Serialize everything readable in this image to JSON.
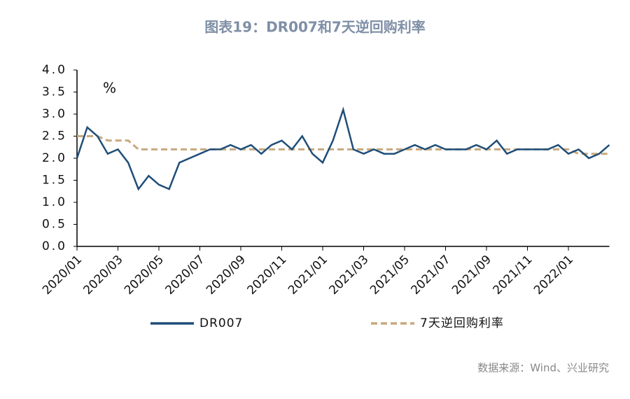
{
  "chart_data": {
    "type": "line",
    "title": "图表19：DR007和7天逆回购利率",
    "y_label": "%",
    "source": "数据来源：Wind、兴业研究",
    "categories": [
      "2020/01",
      null,
      null,
      null,
      "2020/03",
      null,
      null,
      null,
      "2020/05",
      null,
      null,
      null,
      "2020/07",
      null,
      null,
      null,
      "2020/09",
      null,
      null,
      null,
      "2020/11",
      null,
      null,
      null,
      "2021/01",
      null,
      null,
      null,
      "2021/03",
      null,
      null,
      null,
      "2021/05",
      null,
      null,
      null,
      "2021/07",
      null,
      null,
      null,
      "2021/09",
      null,
      null,
      null,
      "2021/11",
      null,
      null,
      null,
      "2022/01",
      null,
      null,
      null,
      null
    ],
    "series": [
      {
        "name": "DR007",
        "color": "#1f4e79",
        "dash": false,
        "values": [
          2.0,
          2.7,
          2.5,
          2.1,
          2.2,
          1.9,
          1.3,
          1.6,
          1.4,
          1.3,
          1.9,
          2.0,
          2.1,
          2.2,
          2.2,
          2.3,
          2.2,
          2.3,
          2.1,
          2.3,
          2.4,
          2.2,
          2.5,
          2.1,
          1.9,
          2.4,
          3.1,
          2.2,
          2.1,
          2.2,
          2.1,
          2.1,
          2.2,
          2.3,
          2.2,
          2.3,
          2.2,
          2.2,
          2.2,
          2.3,
          2.2,
          2.4,
          2.1,
          2.2,
          2.2,
          2.2,
          2.2,
          2.3,
          2.1,
          2.2,
          2.0,
          2.1,
          2.3
        ]
      },
      {
        "name": "7天逆回购利率",
        "color": "#c8a97e",
        "dash": true,
        "values": [
          2.5,
          2.5,
          2.5,
          2.4,
          2.4,
          2.4,
          2.2,
          2.2,
          2.2,
          2.2,
          2.2,
          2.2,
          2.2,
          2.2,
          2.2,
          2.2,
          2.2,
          2.2,
          2.2,
          2.2,
          2.2,
          2.2,
          2.2,
          2.2,
          2.2,
          2.2,
          2.2,
          2.2,
          2.2,
          2.2,
          2.2,
          2.2,
          2.2,
          2.2,
          2.2,
          2.2,
          2.2,
          2.2,
          2.2,
          2.2,
          2.2,
          2.2,
          2.2,
          2.2,
          2.2,
          2.2,
          2.2,
          2.2,
          2.2,
          2.1,
          2.1,
          2.1,
          2.1
        ]
      }
    ],
    "ylim": [
      0,
      4
    ],
    "yticks": [
      {
        "value": 0,
        "label": "0.0"
      },
      0.5,
      {
        "value": 1,
        "label": "1.0"
      },
      1.5,
      {
        "value": 2,
        "label": "2.0"
      },
      2.5,
      {
        "value": 3,
        "label": "3.0"
      },
      3.5,
      {
        "value": 4,
        "label": "4.0"
      }
    ],
    "grid": false
  }
}
